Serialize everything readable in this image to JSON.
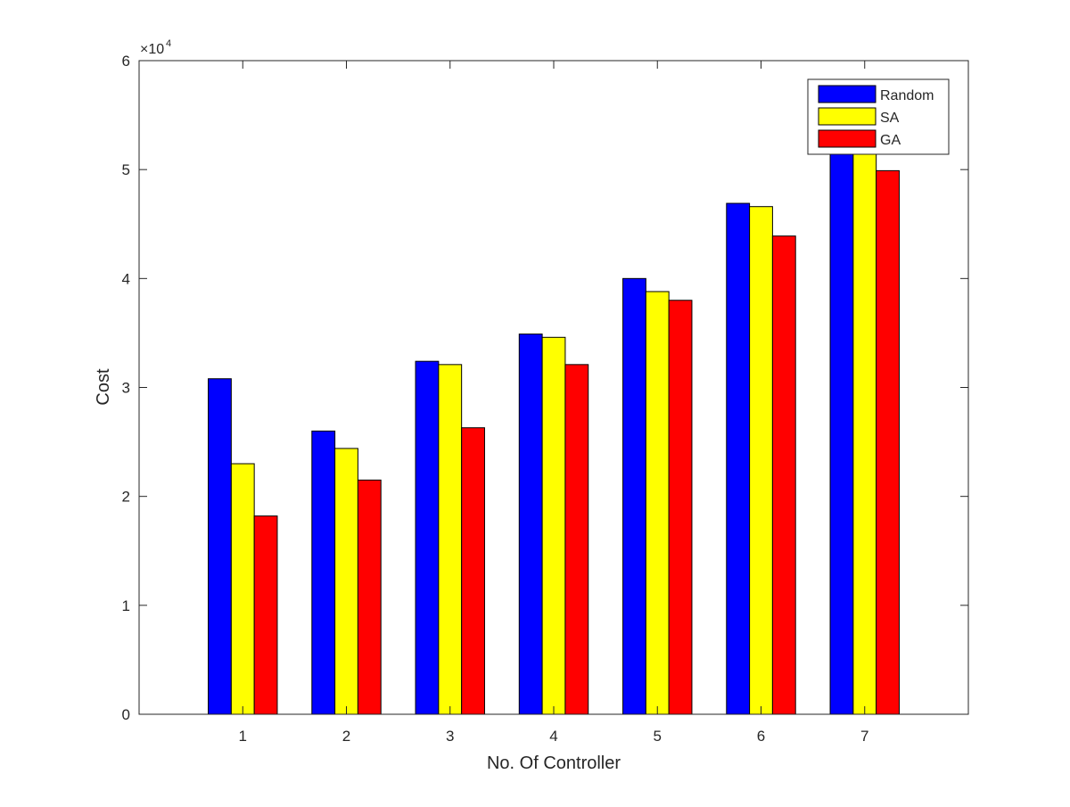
{
  "chart_data": {
    "type": "bar",
    "title": "",
    "xlabel": "No. Of Controller",
    "ylabel": "Cost",
    "y_exponent_label": "×10",
    "y_exponent_power": "4",
    "categories": [
      "1",
      "2",
      "3",
      "4",
      "5",
      "6",
      "7"
    ],
    "xlim": [
      0,
      8
    ],
    "ylim": [
      0,
      60000
    ],
    "yticks": [
      0,
      10000,
      20000,
      30000,
      40000,
      50000,
      60000
    ],
    "ytick_labels": [
      "0",
      "1",
      "2",
      "3",
      "4",
      "5",
      "6"
    ],
    "legend_position": "top-right",
    "grid": false,
    "series": [
      {
        "name": "Random",
        "color": "#0000ff",
        "values": [
          30800,
          26000,
          32400,
          34900,
          40000,
          46900,
          52800
        ]
      },
      {
        "name": "SA",
        "color": "#ffff00",
        "values": [
          23000,
          24400,
          32100,
          34600,
          38800,
          46600,
          52500
        ]
      },
      {
        "name": "GA",
        "color": "#ff0000",
        "values": [
          18200,
          21500,
          26300,
          32100,
          38000,
          43900,
          49900
        ]
      }
    ]
  }
}
